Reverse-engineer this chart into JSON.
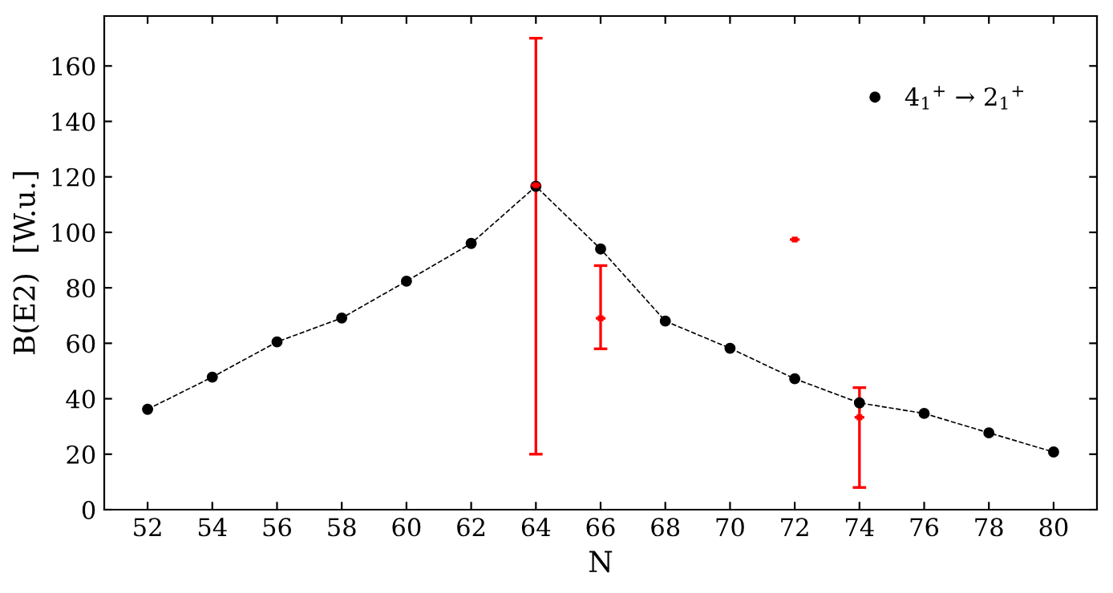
{
  "chart_data": {
    "type": "line",
    "xlabel": "N",
    "ylabel": "B(E2)  [W.u.]",
    "x": [
      52,
      54,
      56,
      58,
      60,
      62,
      64,
      66,
      68,
      70,
      72,
      74,
      76,
      78,
      80
    ],
    "series": [
      {
        "name": "4$_{1}$$^{+}$ → 2$_{1}$$^{+}$",
        "color": "#000000",
        "marker": "circle",
        "line_style": "dashed",
        "values": [
          36.2,
          47.8,
          60.5,
          69.1,
          82.4,
          96,
          116.6,
          94,
          68,
          58.2,
          47.2,
          38.5,
          34.7,
          27.7,
          20.8
        ]
      },
      {
        "type": "scatter",
        "color": "#ff0000",
        "marker": "square",
        "xerrors": [
          0.15,
          0.15,
          0.15,
          0.15
        ],
        "x": [
          64,
          66,
          72,
          74
        ],
        "values": [
          117,
          69,
          97.4,
          33.3
        ],
        "errors": [
          [
            20,
            170
          ],
          [
            58,
            88
          ],
          null,
          [
            8,
            44
          ]
        ]
      }
    ],
    "xlim": [
      50.66,
      81.34
    ],
    "ylim": [
      0,
      178
    ],
    "xticks": [
      52,
      54,
      56,
      58,
      60,
      62,
      64,
      66,
      68,
      70,
      72,
      74,
      76,
      78,
      80
    ],
    "yticks": [
      0,
      20,
      40,
      60,
      80,
      100,
      120,
      140,
      160
    ],
    "legend": "top right",
    "grid": false
  }
}
